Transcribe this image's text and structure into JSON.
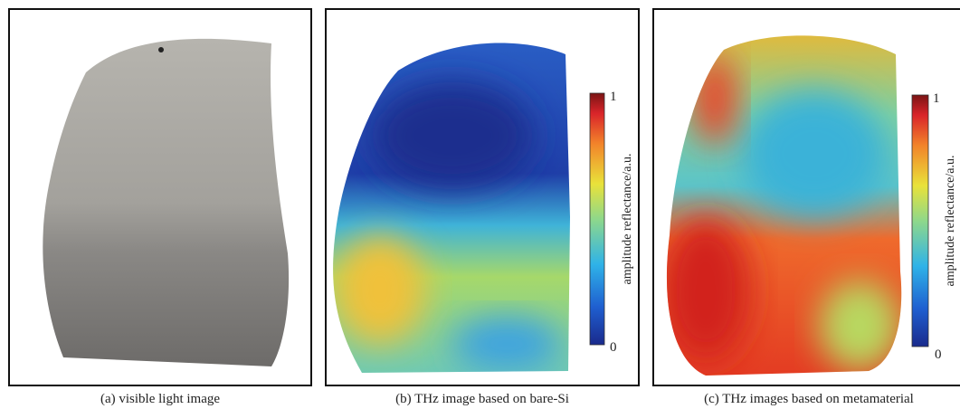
{
  "panels": [
    {
      "caption": "(a) visible light image"
    },
    {
      "caption": "(b) THz image based on bare-Si",
      "colorbar": {
        "max": "1",
        "min": "0",
        "label": "amplitude reflectance/a.u."
      }
    },
    {
      "caption": "(c) THz images based on metamaterial",
      "colorbar": {
        "max": "1",
        "min": "0",
        "label": "amplitude reflectance/a.u."
      }
    }
  ]
}
